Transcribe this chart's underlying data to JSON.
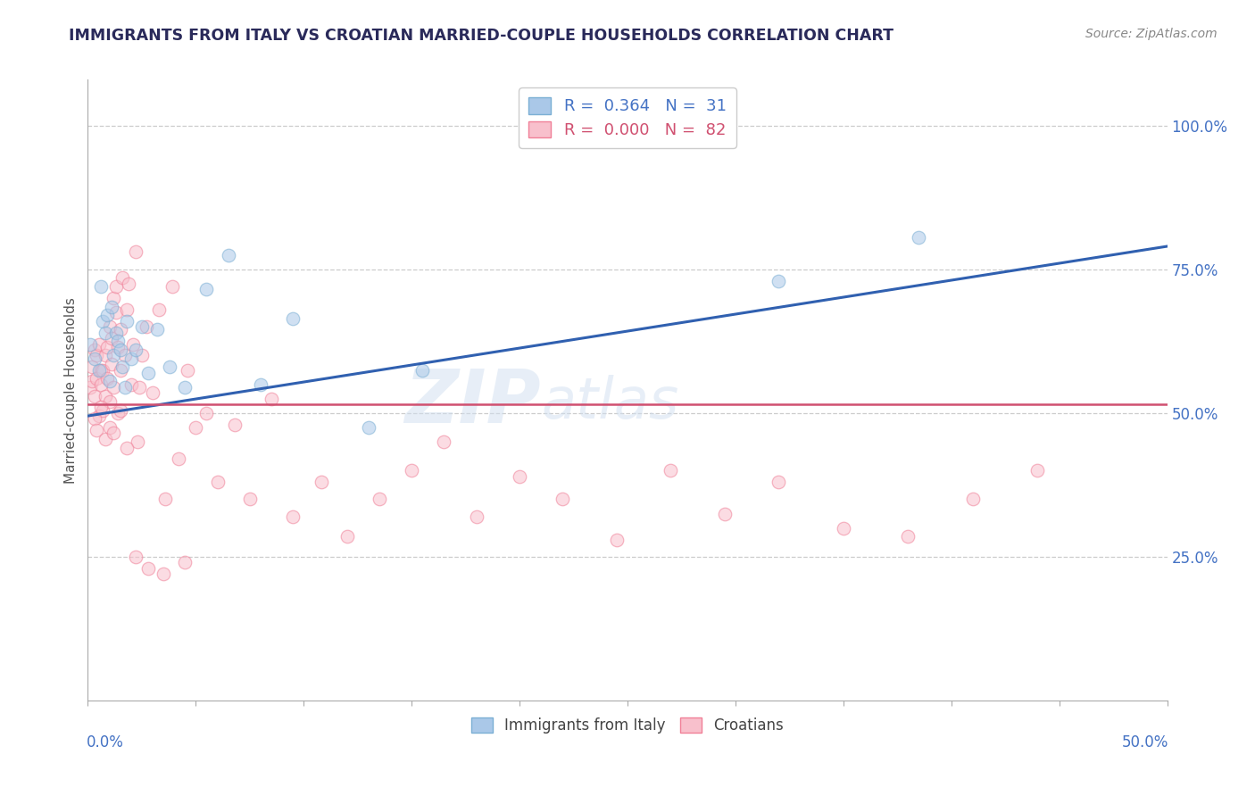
{
  "title": "IMMIGRANTS FROM ITALY VS CROATIAN MARRIED-COUPLE HOUSEHOLDS CORRELATION CHART",
  "source_text": "Source: ZipAtlas.com",
  "xlabel_bottom_left": "0.0%",
  "xlabel_bottom_right": "50.0%",
  "ylabel": "Married-couple Households",
  "ytick_labels": [
    "25.0%",
    "50.0%",
    "75.0%",
    "100.0%"
  ],
  "ytick_values": [
    0.25,
    0.5,
    0.75,
    1.0
  ],
  "xmin": 0.0,
  "xmax": 0.5,
  "ymin": 0.0,
  "ymax": 1.08,
  "legend_entries": [
    {
      "label": "R =  0.364   N =  31",
      "color": "#a8c4e0"
    },
    {
      "label": "R =  0.000   N =  82",
      "color": "#f4a0b0"
    }
  ],
  "italy_scatter_x": [
    0.001,
    0.003,
    0.005,
    0.006,
    0.007,
    0.008,
    0.009,
    0.01,
    0.011,
    0.012,
    0.013,
    0.014,
    0.015,
    0.016,
    0.017,
    0.018,
    0.02,
    0.022,
    0.025,
    0.028,
    0.032,
    0.038,
    0.045,
    0.055,
    0.065,
    0.08,
    0.095,
    0.13,
    0.155,
    0.32,
    0.385
  ],
  "italy_scatter_y": [
    0.62,
    0.595,
    0.575,
    0.72,
    0.66,
    0.64,
    0.67,
    0.555,
    0.685,
    0.6,
    0.64,
    0.625,
    0.61,
    0.58,
    0.545,
    0.66,
    0.595,
    0.61,
    0.65,
    0.57,
    0.645,
    0.58,
    0.545,
    0.715,
    0.775,
    0.55,
    0.665,
    0.475,
    0.575,
    0.73,
    0.805
  ],
  "croatian_scatter_x": [
    0.001,
    0.002,
    0.002,
    0.003,
    0.003,
    0.004,
    0.004,
    0.005,
    0.005,
    0.006,
    0.006,
    0.007,
    0.007,
    0.008,
    0.008,
    0.009,
    0.009,
    0.01,
    0.01,
    0.011,
    0.011,
    0.012,
    0.012,
    0.013,
    0.013,
    0.014,
    0.014,
    0.015,
    0.015,
    0.016,
    0.017,
    0.018,
    0.019,
    0.02,
    0.021,
    0.022,
    0.023,
    0.024,
    0.025,
    0.027,
    0.03,
    0.033,
    0.036,
    0.039,
    0.042,
    0.046,
    0.05,
    0.055,
    0.06,
    0.068,
    0.075,
    0.085,
    0.095,
    0.108,
    0.12,
    0.135,
    0.15,
    0.165,
    0.18,
    0.2,
    0.22,
    0.245,
    0.27,
    0.295,
    0.32,
    0.35,
    0.38,
    0.41,
    0.44,
    0.003,
    0.004,
    0.006,
    0.008,
    0.01,
    0.012,
    0.015,
    0.018,
    0.022,
    0.028,
    0.035,
    0.045
  ],
  "croatian_scatter_y": [
    0.545,
    0.58,
    0.555,
    0.61,
    0.53,
    0.6,
    0.56,
    0.62,
    0.495,
    0.575,
    0.55,
    0.505,
    0.575,
    0.53,
    0.6,
    0.56,
    0.615,
    0.65,
    0.52,
    0.63,
    0.585,
    0.7,
    0.545,
    0.72,
    0.675,
    0.615,
    0.5,
    0.645,
    0.575,
    0.735,
    0.6,
    0.68,
    0.725,
    0.55,
    0.62,
    0.78,
    0.45,
    0.545,
    0.6,
    0.65,
    0.535,
    0.68,
    0.35,
    0.72,
    0.42,
    0.575,
    0.475,
    0.5,
    0.38,
    0.48,
    0.35,
    0.525,
    0.32,
    0.38,
    0.285,
    0.35,
    0.4,
    0.45,
    0.32,
    0.39,
    0.35,
    0.28,
    0.4,
    0.325,
    0.38,
    0.3,
    0.285,
    0.35,
    0.4,
    0.49,
    0.47,
    0.51,
    0.455,
    0.475,
    0.465,
    0.505,
    0.44,
    0.25,
    0.23,
    0.22,
    0.24
  ],
  "italy_line_x": [
    0.0,
    0.5
  ],
  "italy_line_y": [
    0.495,
    0.79
  ],
  "croatian_line_y": 0.516,
  "italy_color": "#7bafd4",
  "italy_color_fill": "#aac8e8",
  "croatian_color": "#f08098",
  "croatian_color_fill": "#f8c0cc",
  "trend_italy_color": "#3060b0",
  "trend_croatian_color": "#d05070",
  "watermark_text": "ZIP",
  "watermark_text2": "atlas",
  "background_color": "#ffffff",
  "grid_color": "#cccccc",
  "title_color": "#2a2a5a",
  "axis_label_color": "#4472c4",
  "scatter_alpha": 0.55,
  "scatter_size": 110
}
